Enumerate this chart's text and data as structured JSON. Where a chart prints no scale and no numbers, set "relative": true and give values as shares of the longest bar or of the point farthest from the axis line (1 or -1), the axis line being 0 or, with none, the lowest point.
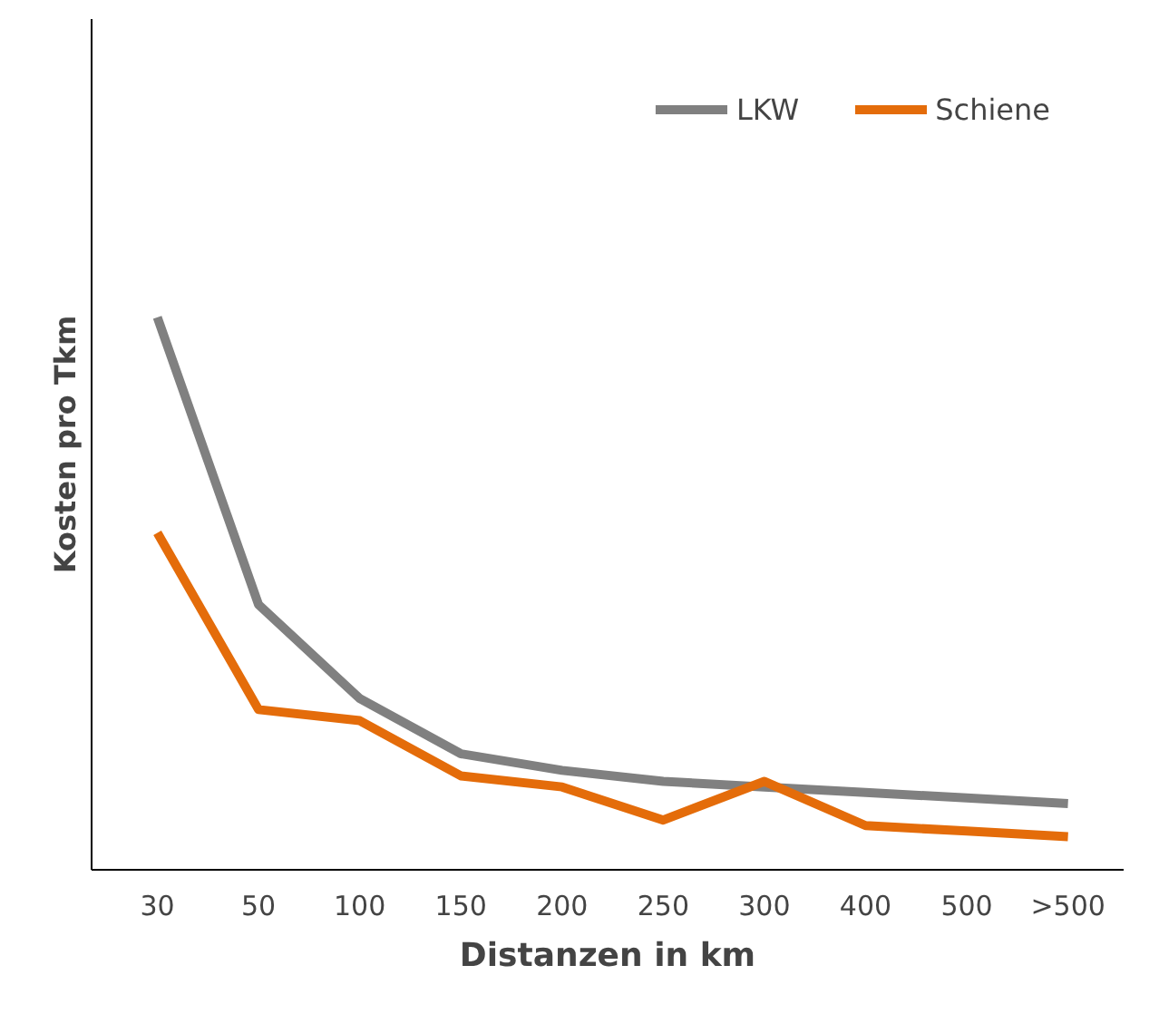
{
  "chart_data": {
    "type": "line",
    "relative": true,
    "xlabel": "Distanzen in km",
    "ylabel": "Kosten pro Tkm",
    "categories": [
      "30",
      "50",
      "100",
      "150",
      "200",
      "250",
      "300",
      "400",
      "500",
      ">500"
    ],
    "series": [
      {
        "name": "LKW",
        "color": "#808080",
        "values": [
          1,
          0.48,
          0.31,
          0.21,
          0.18,
          0.16,
          0.15,
          0.14,
          0.13,
          0.12
        ]
      },
      {
        "name": "Schiene",
        "color": "#e46c0a",
        "values": [
          0.61,
          0.29,
          0.27,
          0.17,
          0.15,
          0.09,
          0.16,
          0.08,
          0.07,
          0.06
        ]
      }
    ],
    "legend": "top right",
    "grid": false,
    "marker": "none",
    "line_style": "solid"
  }
}
